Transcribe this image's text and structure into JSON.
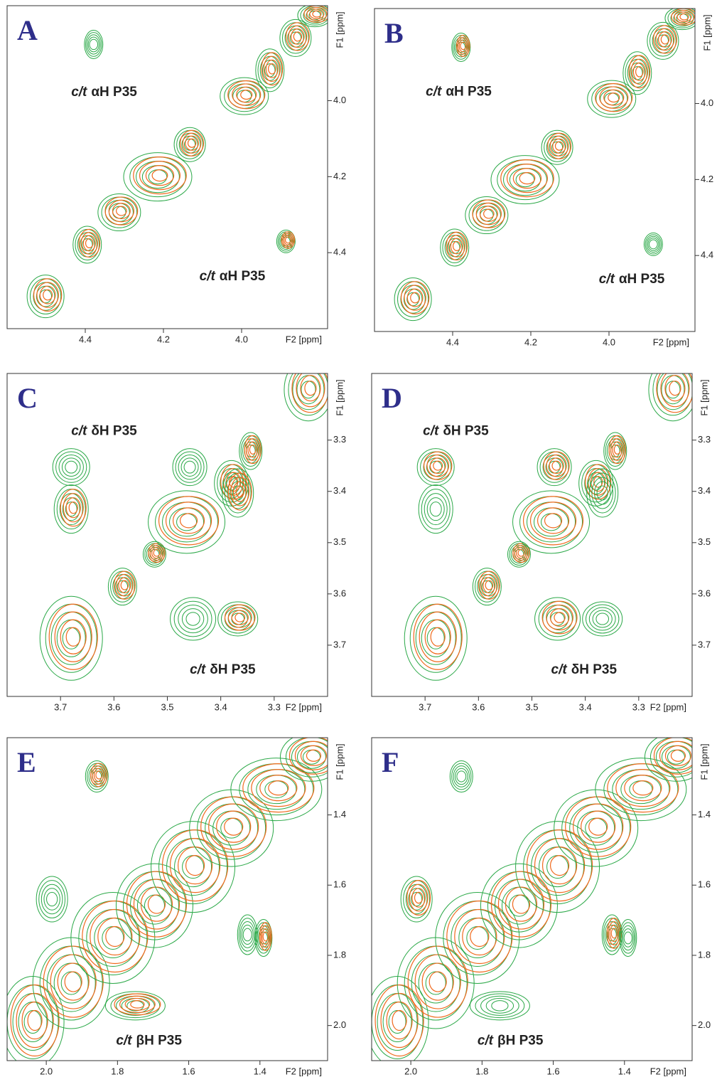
{
  "panels": [
    {
      "letter": "A",
      "xlim": [
        4.6,
        3.78
      ],
      "ylim": [
        3.75,
        4.6
      ],
      "xticks": [
        4.4,
        4.2,
        {
          "value": 4,
          "label": "4.0"
        }
      ],
      "yticks": [
        {
          "value": 4,
          "label": "4.0"
        },
        4.2,
        4.4
      ],
      "xlabel": "F2 [ppm]",
      "ylabel": "F1 [ppm]",
      "annotations": [
        {
          "italic": "c/t",
          "text": "αH P35"
        },
        {
          "italic": "c/t",
          "text": "αH P35"
        }
      ]
    },
    {
      "letter": "B",
      "xlim": [
        4.6,
        3.78
      ],
      "ylim": [
        3.75,
        4.6
      ],
      "xticks": [
        4.4,
        4.2,
        {
          "value": 4,
          "label": "4.0"
        }
      ],
      "yticks": [
        {
          "value": 4,
          "label": "4.0"
        },
        4.2,
        4.4
      ],
      "xlabel": "F2 [ppm]",
      "ylabel": "F1 [ppm]",
      "annotations": [
        {
          "italic": "c/t",
          "text": "αH P35"
        },
        {
          "italic": "c/t",
          "text": "αH P35"
        }
      ]
    },
    {
      "letter": "C",
      "xlim": [
        3.8,
        3.2
      ],
      "ylim": [
        3.17,
        3.8
      ],
      "xticks": [
        3.7,
        3.6,
        3.5,
        3.4,
        3.3
      ],
      "yticks": [
        3.3,
        3.4,
        3.5,
        3.6,
        3.7
      ],
      "xlabel": "F2 [ppm]",
      "ylabel": "F1 [ppm]",
      "annotations": [
        {
          "italic": "c/t",
          "text": "δH P35"
        },
        {
          "italic": "c/t",
          "text": "δH P35"
        }
      ]
    },
    {
      "letter": "D",
      "xlim": [
        3.8,
        3.2
      ],
      "ylim": [
        3.17,
        3.8
      ],
      "xticks": [
        3.7,
        3.6,
        3.5,
        3.4,
        3.3
      ],
      "yticks": [
        3.3,
        3.4,
        3.5,
        3.6,
        3.7
      ],
      "xlabel": "F2 [ppm]",
      "ylabel": "F1 [ppm]",
      "annotations": [
        {
          "italic": "c/t",
          "text": "δH P35"
        },
        {
          "italic": "c/t",
          "text": "δH P35"
        }
      ]
    },
    {
      "letter": "E",
      "xlim": [
        2.11,
        1.21
      ],
      "ylim": [
        1.18,
        2.1
      ],
      "xticks": [
        {
          "value": 2,
          "label": "2.0"
        },
        1.8,
        1.6,
        1.4
      ],
      "yticks": [
        1.4,
        1.6,
        1.8,
        {
          "value": 2,
          "label": "2.0"
        }
      ],
      "xlabel": "F2 [ppm]",
      "ylabel": "F1 [ppm]",
      "annotations": [
        {
          "italic": "c/t",
          "text": "βH P35"
        }
      ]
    },
    {
      "letter": "F",
      "xlim": [
        2.11,
        1.21
      ],
      "ylim": [
        1.18,
        2.1
      ],
      "xticks": [
        {
          "value": 2,
          "label": "2.0"
        },
        1.8,
        1.6,
        1.4
      ],
      "yticks": [
        1.4,
        1.6,
        1.8,
        {
          "value": 2,
          "label": "2.0"
        }
      ],
      "xlabel": "F2 [ppm]",
      "ylabel": "F1 [ppm]",
      "annotations": [
        {
          "italic": "c/t",
          "text": "βH P35"
        }
      ]
    }
  ]
}
